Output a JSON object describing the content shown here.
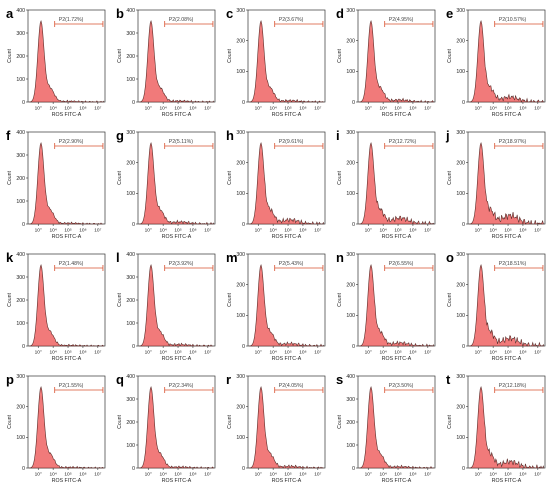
{
  "chart_data": {
    "type": "area",
    "xlabel": "ROS FITC-A",
    "ylabel": "Count",
    "x_scale": "log",
    "x_ticks": [
      "10°",
      "10⁴",
      "10⁵",
      "10⁶",
      "10⁷"
    ],
    "colors": {
      "fill": "#f06b6b",
      "outline": "#5a2b28",
      "gate": "#d9502f",
      "frame": "#333333"
    },
    "panels": [
      {
        "label": "a",
        "ymax": 400,
        "yticks": [
          0,
          100,
          200,
          300,
          400
        ],
        "gate": "P2(1.72%)",
        "tail": 0.1
      },
      {
        "label": "b",
        "ymax": 400,
        "yticks": [
          0,
          100,
          200,
          300,
          400
        ],
        "gate": "P2(2.08%)",
        "tail": 0.15
      },
      {
        "label": "c",
        "ymax": 300,
        "yticks": [
          0,
          100,
          200,
          300
        ],
        "gate": "P2(3.67%)",
        "tail": 0.2
      },
      {
        "label": "d",
        "ymax": 300,
        "yticks": [
          0,
          100,
          200,
          300
        ],
        "gate": "P2(4.95%)",
        "tail": 0.3
      },
      {
        "label": "e",
        "ymax": 300,
        "yticks": [
          0,
          100,
          200,
          300
        ],
        "gate": "P2(10.57%)",
        "tail": 0.7
      },
      {
        "label": "f",
        "ymax": 400,
        "yticks": [
          0,
          100,
          200,
          300,
          400
        ],
        "gate": "P2(2.90%)",
        "tail": 0.12
      },
      {
        "label": "g",
        "ymax": 300,
        "yticks": [
          0,
          100,
          200,
          300
        ],
        "gate": "P2(5.11%)",
        "tail": 0.3
      },
      {
        "label": "h",
        "ymax": 300,
        "yticks": [
          0,
          100,
          200,
          300
        ],
        "gate": "P2(9.61%)",
        "tail": 0.6
      },
      {
        "label": "i",
        "ymax": 300,
        "yticks": [
          0,
          100,
          200,
          300
        ],
        "gate": "P2(12.72%)",
        "tail": 0.85
      },
      {
        "label": "j",
        "ymax": 300,
        "yticks": [
          0,
          100,
          200,
          300
        ],
        "gate": "P2(18.97%)",
        "tail": 1.2
      },
      {
        "label": "k",
        "ymax": 400,
        "yticks": [
          0,
          100,
          200,
          300,
          400
        ],
        "gate": "P2(1.48%)",
        "tail": 0.1
      },
      {
        "label": "l",
        "ymax": 400,
        "yticks": [
          0,
          100,
          200,
          300,
          400
        ],
        "gate": "P2(3.92%)",
        "tail": 0.22
      },
      {
        "label": "m",
        "ymax": 300,
        "yticks": [
          0,
          100,
          200,
          300
        ],
        "gate": "P2(5.43%)",
        "tail": 0.35
      },
      {
        "label": "n",
        "ymax": 300,
        "yticks": [
          0,
          100,
          200,
          300
        ],
        "gate": "P2(6.55%)",
        "tail": 0.45
      },
      {
        "label": "o",
        "ymax": 300,
        "yticks": [
          0,
          100,
          200,
          300
        ],
        "gate": "P2(18.51%)",
        "tail": 1.1
      },
      {
        "label": "p",
        "ymax": 300,
        "yticks": [
          0,
          100,
          200,
          300
        ],
        "gate": "P2(1.55%)",
        "tail": 0.1
      },
      {
        "label": "q",
        "ymax": 400,
        "yticks": [
          0,
          100,
          200,
          300,
          400
        ],
        "gate": "P2(2.34%)",
        "tail": 0.15
      },
      {
        "label": "r",
        "ymax": 300,
        "yticks": [
          0,
          100,
          200,
          300
        ],
        "gate": "P2(4.05%)",
        "tail": 0.25
      },
      {
        "label": "s",
        "ymax": 400,
        "yticks": [
          0,
          100,
          200,
          300,
          400
        ],
        "gate": "P2(3.50%)",
        "tail": 0.2
      },
      {
        "label": "t",
        "ymax": 300,
        "yticks": [
          0,
          100,
          200,
          300
        ],
        "gate": "P2(12.18%)",
        "tail": 0.9
      }
    ]
  }
}
